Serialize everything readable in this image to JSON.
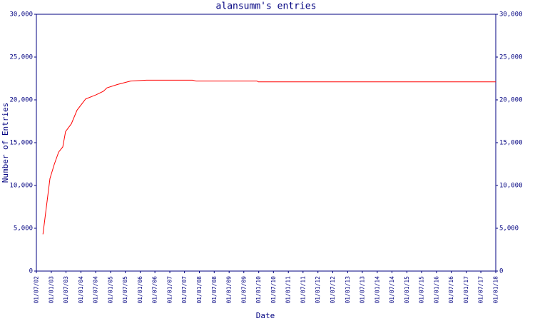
{
  "chart_data": {
    "type": "line",
    "title": "alansumm's entries",
    "x_label": "Date",
    "y_label": "Number of Entries",
    "x": [
      "20/09/02",
      "15/12/02",
      "08/02/03",
      "01/04/03",
      "22/05/03",
      "26/06/03",
      "05/09/03",
      "14/11/03",
      "28/02/04",
      "08/07/04",
      "04/10/04",
      "17/11/04",
      "28/03/05",
      "05/09/05",
      "17/03/06",
      "08/10/07",
      "20/11/07",
      "10/12/09",
      "28/12/09",
      "01/01/18"
    ],
    "series": [
      {
        "name": "alansumm",
        "color": "#ff0000",
        "values": [
          4300,
          10800,
          12500,
          13900,
          14500,
          16300,
          17200,
          18800,
          20100,
          20600,
          21000,
          21400,
          21800,
          22200,
          22300,
          22300,
          22200,
          22200,
          22100,
          22100
        ]
      }
    ],
    "xlim": [
      "01/07/02",
      "01/01/18"
    ],
    "xticks": [
      "01/07/02",
      "01/01/03",
      "01/07/03",
      "01/01/04",
      "01/07/04",
      "01/01/05",
      "01/07/05",
      "01/01/06",
      "01/07/06",
      "01/01/07",
      "01/07/07",
      "01/01/08",
      "01/07/08",
      "01/01/09",
      "01/07/09",
      "01/01/10",
      "01/07/10",
      "01/01/11",
      "01/07/11",
      "01/01/12",
      "01/07/12",
      "01/01/13",
      "01/07/13",
      "01/01/14",
      "01/07/14",
      "01/01/15",
      "01/07/15",
      "01/01/16",
      "01/07/16",
      "01/01/17",
      "01/07/17",
      "01/01/18"
    ],
    "ylim": [
      0,
      30000
    ],
    "yticks": [
      0,
      {
        "value": 5000,
        "label": "5,000"
      },
      {
        "value": 10000,
        "label": "10,000"
      },
      {
        "value": 15000,
        "label": "15,000"
      },
      {
        "value": 20000,
        "label": "20,000"
      },
      {
        "value": 25000,
        "label": "25,000"
      },
      {
        "value": 30000,
        "label": "30,000"
      }
    ],
    "y2lim": [
      0,
      30000
    ],
    "y2ticks": [
      0,
      {
        "value": 5000,
        "label": "5,000"
      },
      {
        "value": 10000,
        "label": "10,000"
      },
      {
        "value": 15000,
        "label": "15,000"
      },
      {
        "value": 20000,
        "label": "20,000"
      },
      {
        "value": 25000,
        "label": "25,000"
      },
      {
        "value": 30000,
        "label": "30,000"
      }
    ],
    "axis_color": "#000080"
  }
}
